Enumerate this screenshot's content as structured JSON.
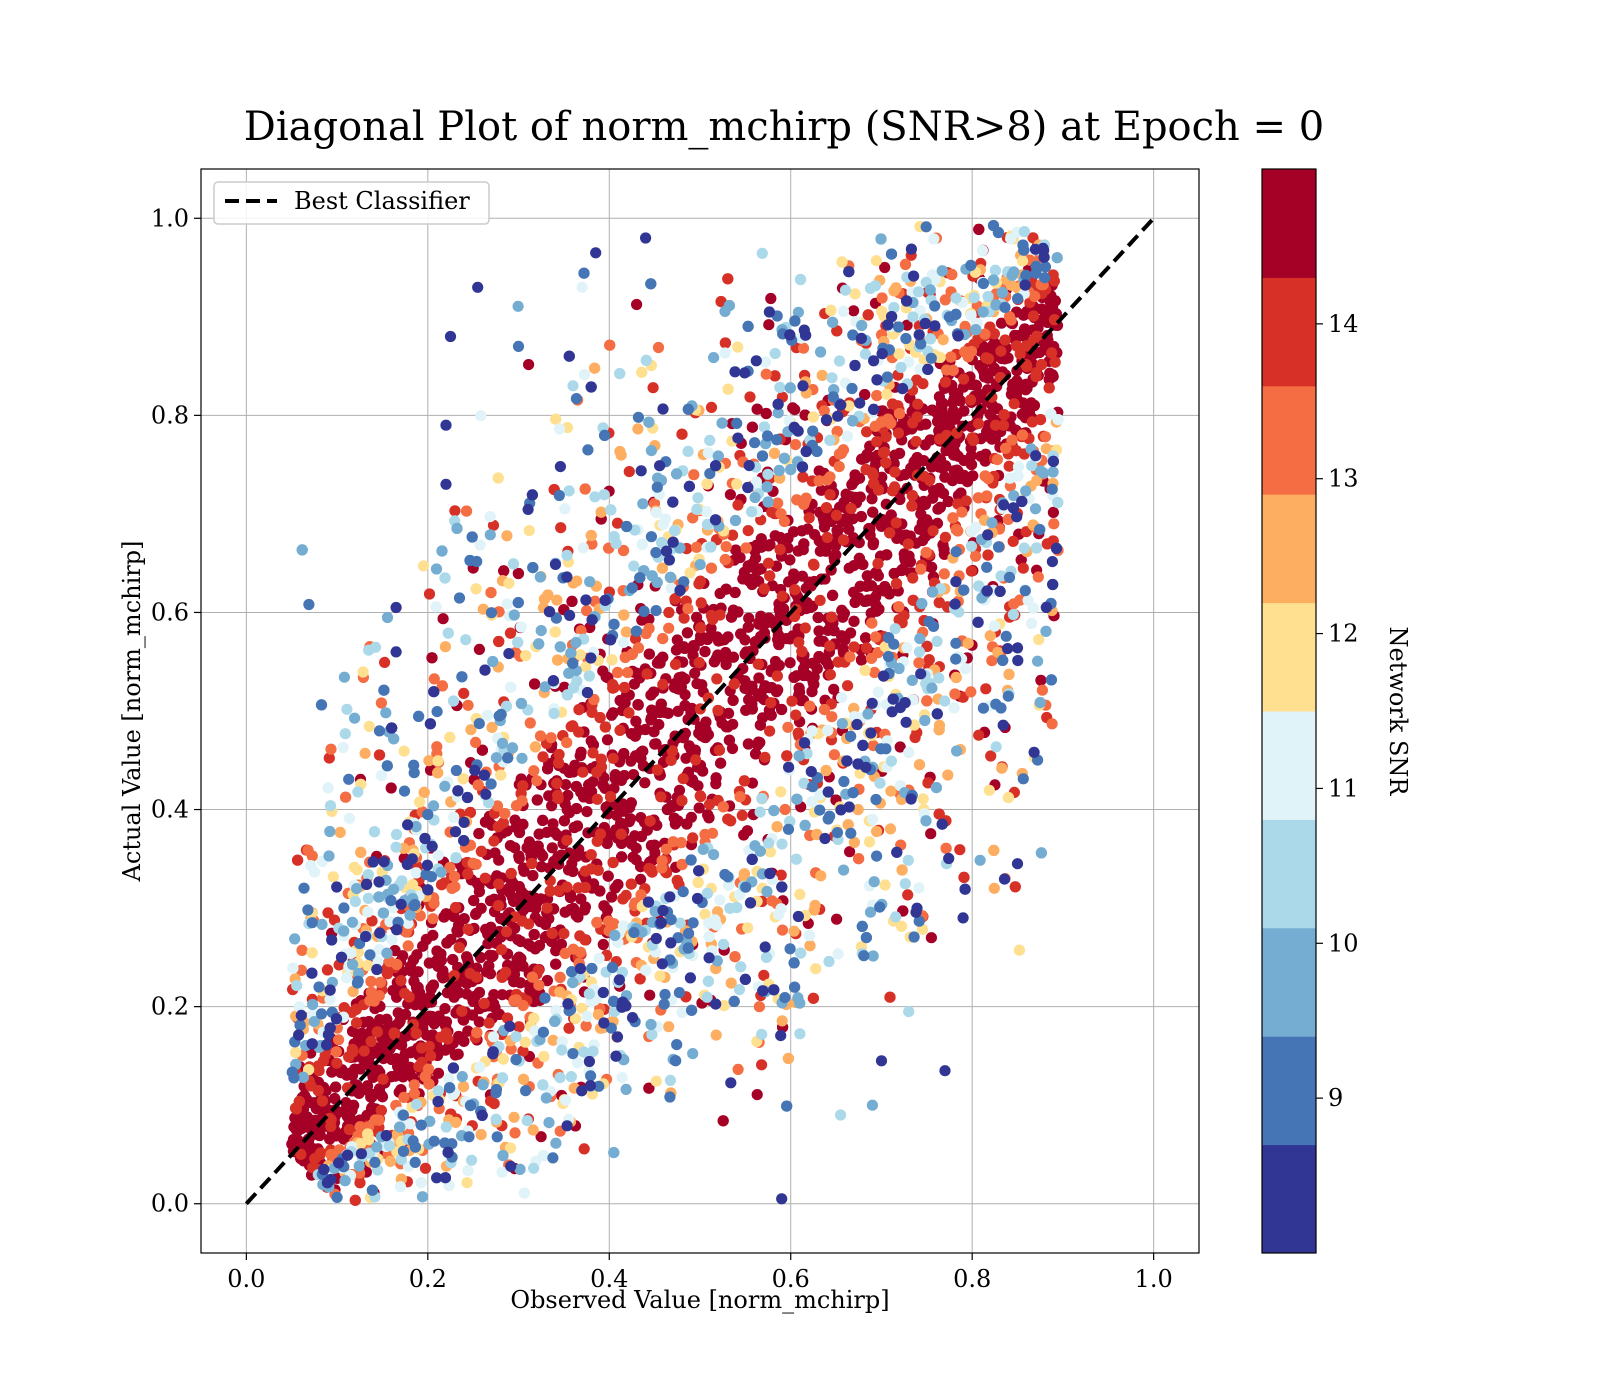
{
  "chart_data": {
    "type": "scatter",
    "title": "Diagonal Plot of norm_mchirp (SNR>8) at Epoch = 0",
    "xlabel": "Observed Value [norm_mchirp]",
    "ylabel": "Actual Value [norm_mchirp]",
    "xlim": [
      -0.05,
      1.05
    ],
    "ylim": [
      -0.05,
      1.05
    ],
    "xticks": [
      "0.0",
      "0.2",
      "0.4",
      "0.6",
      "0.8",
      "1.0"
    ],
    "yticks": [
      "0.0",
      "0.2",
      "0.4",
      "0.6",
      "0.8",
      "1.0"
    ],
    "grid": true,
    "legend": {
      "position": "upper-left",
      "entries": [
        "Best Classifier"
      ]
    },
    "reference_line": {
      "name": "Best Classifier",
      "x": [
        0.0,
        1.0
      ],
      "y": [
        0.0,
        1.0
      ],
      "style": "dashed",
      "color": "#000000"
    },
    "colorbar": {
      "label": "Network SNR",
      "min": 8.0,
      "max": 15.0,
      "ticks": [
        "9",
        "10",
        "11",
        "12",
        "13",
        "14"
      ],
      "tick_values": [
        9,
        10,
        11,
        12,
        13,
        14
      ],
      "colors": [
        "#313695",
        "#4575b4",
        "#74add1",
        "#abd9e9",
        "#e0f3f8",
        "#fee090",
        "#fdae61",
        "#f46d43",
        "#d73027",
        "#a50026"
      ]
    },
    "point_sample": [
      {
        "x": 0.59,
        "y": 0.005,
        "snr": 8.3
      },
      {
        "x": 0.79,
        "y": 0.29,
        "snr": 8.2
      },
      {
        "x": 0.85,
        "y": 0.345,
        "snr": 8.4
      },
      {
        "x": 0.77,
        "y": 0.135,
        "snr": 8.3
      },
      {
        "x": 0.7,
        "y": 0.145,
        "snr": 8.5
      },
      {
        "x": 0.225,
        "y": 0.88,
        "snr": 8.6
      },
      {
        "x": 0.255,
        "y": 0.93,
        "snr": 8.4
      },
      {
        "x": 0.3,
        "y": 0.87,
        "snr": 9.3
      },
      {
        "x": 0.165,
        "y": 0.605,
        "snr": 8.6
      },
      {
        "x": 0.165,
        "y": 0.56,
        "snr": 8.5
      },
      {
        "x": 0.22,
        "y": 0.79,
        "snr": 8.4
      },
      {
        "x": 0.22,
        "y": 0.73,
        "snr": 8.3
      },
      {
        "x": 0.385,
        "y": 0.965,
        "snr": 8.6
      },
      {
        "x": 0.44,
        "y": 0.98,
        "snr": 8.4
      },
      {
        "x": 0.825,
        "y": 0.425,
        "snr": 14.5
      },
      {
        "x": 0.755,
        "y": 0.27,
        "snr": 14.6
      },
      {
        "x": 0.89,
        "y": 0.69,
        "snr": 13.5
      },
      {
        "x": 0.25,
        "y": 0.645,
        "snr": 14.6
      },
      {
        "x": 0.73,
        "y": 0.195,
        "snr": 10.5
      },
      {
        "x": 0.655,
        "y": 0.09,
        "snr": 10.2
      },
      {
        "x": 0.69,
        "y": 0.1,
        "snr": 10.0
      },
      {
        "x": 0.36,
        "y": 0.83,
        "snr": 10.7
      },
      {
        "x": 0.37,
        "y": 0.93,
        "snr": 11.2
      }
    ]
  }
}
